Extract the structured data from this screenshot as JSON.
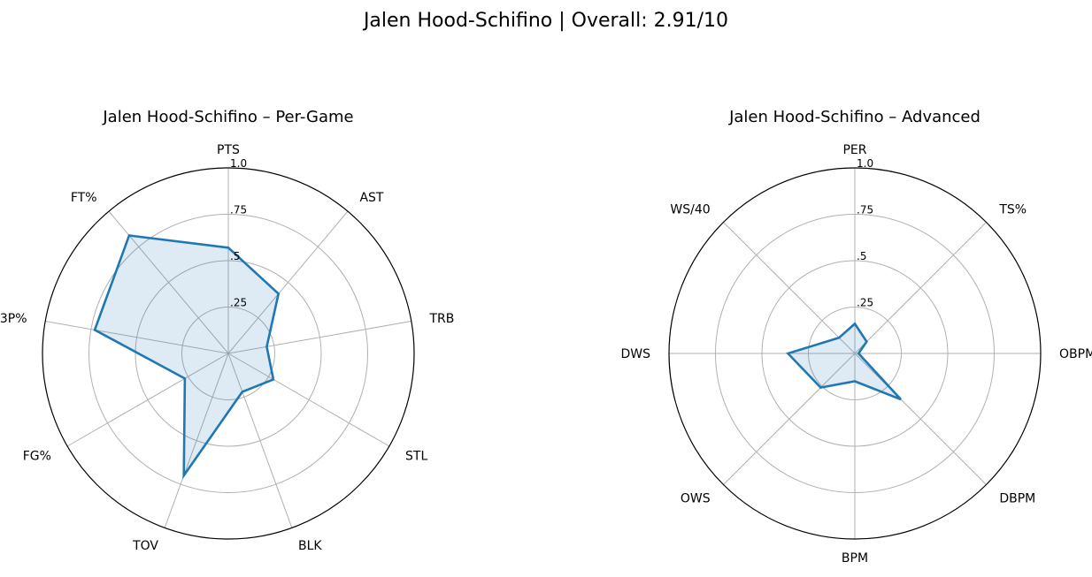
{
  "figure": {
    "title": "Jalen Hood-Schifino | Overall: 2.91/10"
  },
  "chart_data": [
    {
      "type": "radar",
      "title": "Jalen Hood-Schifino – Per-Game",
      "axes": [
        "PTS",
        "AST",
        "TRB",
        "STL",
        "BLK",
        "TOV",
        "FG%",
        "3P%",
        "FT%"
      ],
      "values": [
        0.57,
        0.42,
        0.21,
        0.28,
        0.22,
        0.7,
        0.27,
        0.73,
        0.83
      ],
      "r_range": [
        0,
        1
      ],
      "r_ticks": [
        ".25",
        ".5",
        ".75",
        "1.0"
      ],
      "grid": true,
      "line_color": "#1f77b4",
      "fill_color": "#1f77b4"
    },
    {
      "type": "radar",
      "title": "Jalen Hood-Schifino – Advanced",
      "axes": [
        "PER",
        "TS%",
        "OBPM",
        "DBPM",
        "BPM",
        "OWS",
        "DWS",
        "WS/40"
      ],
      "values": [
        0.16,
        0.09,
        0.02,
        0.35,
        0.15,
        0.26,
        0.36,
        0.12
      ],
      "r_range": [
        0,
        1
      ],
      "r_ticks": [
        ".25",
        ".5",
        ".75",
        "1.0"
      ],
      "grid": true,
      "line_color": "#1f77b4",
      "fill_color": "#1f77b4"
    }
  ]
}
